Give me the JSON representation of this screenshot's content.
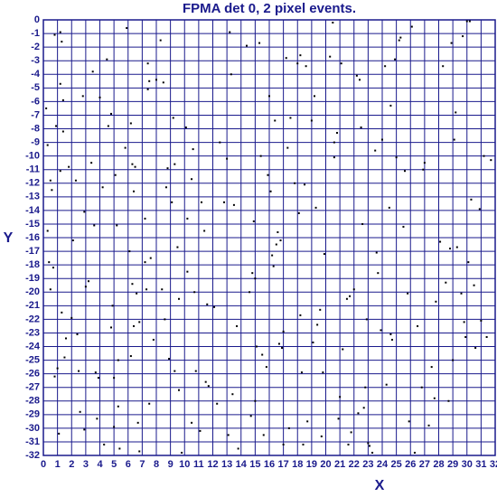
{
  "chart_data": {
    "type": "scatter",
    "title": "FPMA det 0, 2 pixel events.",
    "xlabel": "X",
    "ylabel": "Y",
    "color": "#000000",
    "grid": true,
    "axis_color": "#1a1a8c",
    "xlim": [
      0,
      32
    ],
    "ylim": [
      -32,
      0
    ],
    "xticks": [
      0,
      1,
      2,
      3,
      4,
      5,
      6,
      7,
      8,
      9,
      10,
      11,
      12,
      13,
      14,
      15,
      16,
      17,
      18,
      19,
      20,
      21,
      22,
      23,
      24,
      25,
      26,
      27,
      28,
      29,
      30,
      31,
      32
    ],
    "yticks": [
      0,
      -1,
      -2,
      -3,
      -4,
      -5,
      -6,
      -7,
      -8,
      -9,
      -10,
      -11,
      -12,
      -13,
      -14,
      -15,
      -16,
      -17,
      -18,
      -19,
      -20,
      -21,
      -22,
      -23,
      -24,
      -25,
      -26,
      -27,
      -28,
      -29,
      -30,
      -31,
      -32
    ],
    "x": [
      0.2,
      0.3,
      0.5,
      0.3,
      0.4,
      0.5,
      0.7,
      0.6,
      0.9,
      0.8,
      1.2,
      1.3,
      1.2,
      1.4,
      1.4,
      1.2,
      1.3,
      1.0,
      1.5,
      1.6,
      0.8,
      1.8,
      2.1,
      2.3,
      2.0,
      2.4,
      2.5,
      2.6,
      2.8,
      2.9,
      3.0,
      3.2,
      3.5,
      3.4,
      3.6,
      3.7,
      3.9,
      2.9,
      3.8,
      1.1,
      4.0,
      4.2,
      4.5,
      4.6,
      4.8,
      4.9,
      5.1,
      5.2,
      4.8,
      5.3,
      5.0,
      5.3,
      5.0,
      5.4,
      4.3,
      5.9,
      5.8,
      6.2,
      6.3,
      6.5,
      6.4,
      6.1,
      6.3,
      6.6,
      6.8,
      6.4,
      6.2,
      6.7,
      6.8,
      7.4,
      7.5,
      7.4,
      7.2,
      7.2,
      7.6,
      7.3,
      7.8,
      7.5,
      8.0,
      8.3,
      8.5,
      8.8,
      8.7,
      8.4,
      8.6,
      8.9,
      9.2,
      9.3,
      9.1,
      9.5,
      9.6,
      9.3,
      9.6,
      9.8,
      10.1,
      10.2,
      10.2,
      10.5,
      10.6,
      10.7,
      10.8,
      10.5,
      11.2,
      11.4,
      11.6,
      11.5,
      11.7,
      11.1,
      12.1,
      12.3,
      12.5,
      12.8,
      13.0,
      13.3,
      13.2,
      13.5,
      13.7,
      13.4,
      13.1,
      13.8,
      14.4,
      14.6,
      14.9,
      14.8,
      15.0,
      15.1,
      15.3,
      15.4,
      15.5,
      15.8,
      15.9,
      15.6,
      14.7,
      15.0,
      16.0,
      16.1,
      16.2,
      16.3,
      16.4,
      16.5,
      16.6,
      16.8,
      16.7,
      17.0,
      17.0,
      16.9,
      17.2,
      17.3,
      17.5,
      17.8,
      17.4,
      18.0,
      18.2,
      18.1,
      18.5,
      18.2,
      18.3,
      18.6,
      18.7,
      18.4,
      19.2,
      19.0,
      19.1,
      19.3,
      19.4,
      19.6,
      19.8,
      19.9,
      19.7,
      20.3,
      20.5,
      20.6,
      20.6,
      20.8,
      21.1,
      21.2,
      21.0,
      20.9,
      21.5,
      21.7,
      21.8,
      21.6,
      22.0,
      22.2,
      22.4,
      22.5,
      22.6,
      22.3,
      22.7,
      22.9,
      23.0,
      22.8,
      23.1,
      23.3,
      23.5,
      23.6,
      23.7,
      23.9,
      24.0,
      24.2,
      24.3,
      24.6,
      24.5,
      24.6,
      24.7,
      24.9,
      25.0,
      25.2,
      25.3,
      25.5,
      25.6,
      25.8,
      25.9,
      26.1,
      26.3,
      26.5,
      26.8,
      26.9,
      27.0,
      27.3,
      27.5,
      27.7,
      27.8,
      28.1,
      28.3,
      28.5,
      28.7,
      28.8,
      28.9,
      29.1,
      29.2,
      29.3,
      29.0,
      29.6,
      29.8,
      29.7,
      30.0,
      30.2,
      30.3,
      30.5,
      30.6,
      30.9,
      31.0,
      31.2,
      31.4,
      31.7,
      30.1,
      29.9
    ],
    "y": [
      -6.5,
      -9.2,
      -11.8,
      -15.5,
      -17.8,
      -19.8,
      -18.2,
      -12.5,
      -7.8,
      -1.1,
      -0.9,
      -1.6,
      -4.7,
      -5.9,
      -8.2,
      -11.1,
      -21.5,
      -25.6,
      -24.8,
      -23.4,
      -26.2,
      -10.8,
      -16.2,
      -11.8,
      -21.9,
      -23.1,
      -25.8,
      -28.8,
      -5.6,
      -14.1,
      -19.6,
      -19.2,
      -3.8,
      -10.5,
      -15.1,
      -25.9,
      -26.3,
      -30.1,
      -29.3,
      -30.4,
      -5.7,
      -12.3,
      -2.9,
      -7.8,
      -6.9,
      -21.0,
      -11.4,
      -15.1,
      -22.6,
      -25.0,
      -26.3,
      -28.4,
      -29.9,
      -31.5,
      -31.2,
      -0.6,
      -9.4,
      -7.6,
      -10.6,
      -10.8,
      -12.6,
      -17.0,
      -19.4,
      -20.1,
      -22.2,
      -22.5,
      -24.7,
      -29.6,
      -31.7,
      -3.2,
      -4.5,
      -5.1,
      -14.6,
      -17.8,
      -17.5,
      -19.8,
      -23.5,
      -28.2,
      -4.4,
      -1.5,
      -4.6,
      -10.9,
      -12.3,
      -19.8,
      -22.0,
      -24.9,
      -7.2,
      -10.6,
      -13.4,
      -16.7,
      -20.5,
      -25.8,
      -27.2,
      -31.8,
      -7.9,
      -14.6,
      -18.5,
      -11.7,
      -9.5,
      -20.0,
      -25.8,
      -29.6,
      -13.4,
      -15.5,
      -20.9,
      -26.6,
      -26.9,
      -30.2,
      -21.1,
      -28.2,
      -9.0,
      -13.4,
      -10.2,
      -4.0,
      -0.9,
      -13.6,
      -22.5,
      -27.5,
      -30.5,
      -31.5,
      -1.9,
      -20.0,
      -14.8,
      -18.6,
      -28.0,
      -24.0,
      -1.7,
      -10.0,
      -24.6,
      -25.5,
      -11.4,
      -30.5,
      -29.1,
      -19.0,
      -5.6,
      -12.6,
      -17.3,
      -18.1,
      -7.4,
      -16.5,
      -15.6,
      -16.2,
      -23.8,
      -22.9,
      -31.2,
      -24.1,
      -2.8,
      -9.4,
      -7.2,
      -12.0,
      -30.0,
      -3.2,
      -2.6,
      -14.2,
      -12.1,
      -21.7,
      -25.9,
      -3.4,
      -29.5,
      -31.2,
      -5.6,
      -7.4,
      -23.7,
      -13.8,
      -22.4,
      -21.3,
      -25.9,
      -17.2,
      -30.6,
      -2.7,
      -0.2,
      -9.0,
      -10.1,
      -8.3,
      -3.2,
      -24.2,
      -27.7,
      -29.3,
      -20.5,
      -20.3,
      -30.3,
      -31.2,
      -19.8,
      -4.1,
      -4.4,
      -7.9,
      -15.0,
      -28.9,
      -28.5,
      -22.0,
      -31.1,
      -27.0,
      -31.3,
      -31.8,
      -9.6,
      -17.1,
      -18.6,
      -22.8,
      -8.8,
      -3.4,
      -26.8,
      -6.3,
      -13.8,
      -23.1,
      -23.5,
      -2.9,
      -10.1,
      -1.5,
      -1.3,
      -15.2,
      -11.1,
      -20.1,
      -29.5,
      -0.5,
      -31.8,
      -22.5,
      -27.0,
      -11.0,
      -10.5,
      -29.8,
      -25.5,
      -27.8,
      -20.7,
      -16.3,
      -3.4,
      -19.3,
      -28.0,
      -16.8,
      -1.7,
      -8.8,
      -6.8,
      -16.7,
      -25.0,
      -20.1,
      -22.2,
      -1.2,
      -0.1,
      -0.1,
      -13.2,
      -19.5,
      -24.1,
      -13.9,
      -22.1,
      -10.0,
      -23.3,
      -10.3,
      -17.8,
      -23.3
    ]
  }
}
